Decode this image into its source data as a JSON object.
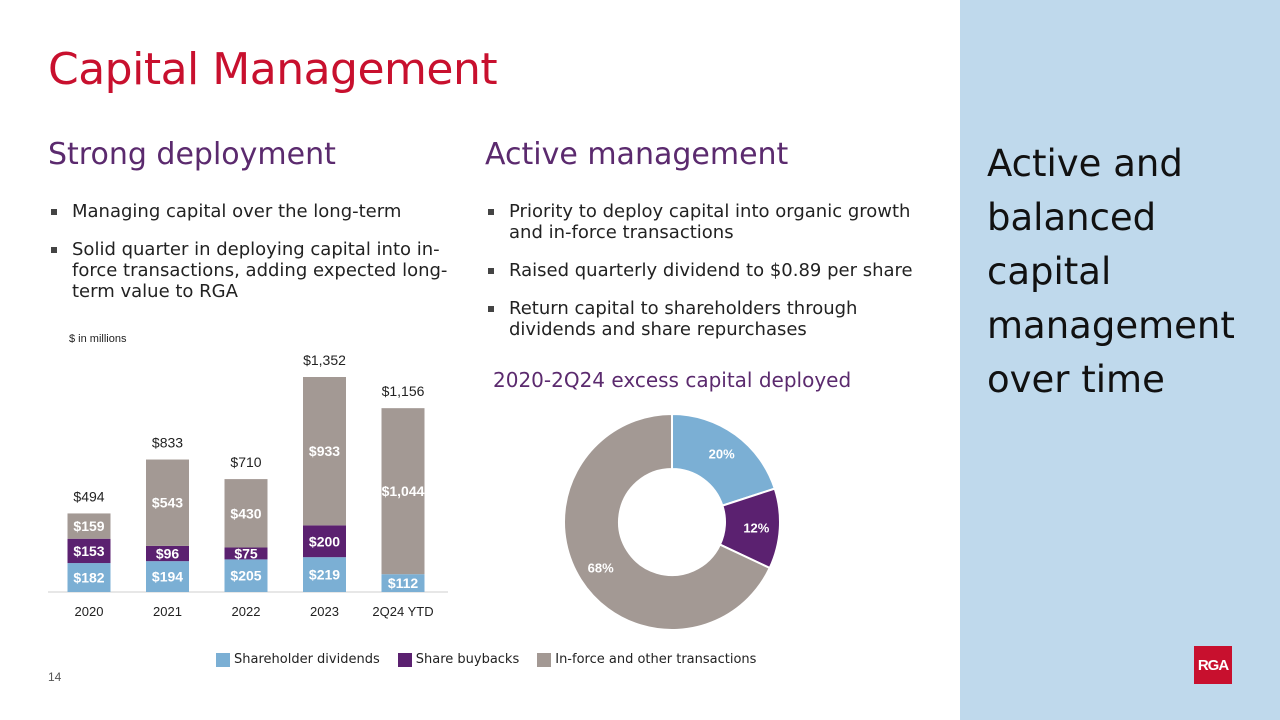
{
  "title": "Capital Management",
  "left": {
    "heading": "Strong deployment",
    "bullets": [
      "Managing capital over the long-term",
      "Solid quarter in deploying capital into in-force transactions, adding expected long-term value to RGA"
    ]
  },
  "right": {
    "heading": "Active management",
    "bullets": [
      "Priority to deploy capital into organic growth and in-force transactions",
      "Raised quarterly dividend to $0.89 per share",
      "Return capital to shareholders through dividends and share repurchases"
    ]
  },
  "sidebar": {
    "text": "Active and balanced capital management over time",
    "logo": "RGA"
  },
  "page_number": "14",
  "units_label": "$ in millions",
  "colors": {
    "dividends": "#7bafd4",
    "buybacks": "#5b2170",
    "inforce": "#a39994",
    "title": "#c8102e",
    "heading": "#5b2a6e",
    "sidebar": "#bfd9ec"
  },
  "legend": [
    "Shareholder dividends",
    "Share buybacks",
    "In-force and other transactions"
  ],
  "chart_data": [
    {
      "type": "bar",
      "stacked": true,
      "ylabel": "$ in millions",
      "categories": [
        "2020",
        "2021",
        "2022",
        "2023",
        "2Q24 YTD"
      ],
      "series": [
        {
          "name": "Shareholder dividends",
          "values": [
            182,
            194,
            205,
            219,
            112
          ],
          "labels": [
            "$182",
            "$194",
            "$205",
            "$219",
            "$112"
          ]
        },
        {
          "name": "Share buybacks",
          "values": [
            153,
            96,
            75,
            200,
            0
          ],
          "labels": [
            "$153",
            "$96",
            "$75",
            "$200",
            ""
          ]
        },
        {
          "name": "In-force and other transactions",
          "values": [
            159,
            543,
            430,
            933,
            1044
          ],
          "labels": [
            "$159",
            "$543",
            "$430",
            "$933",
            "$1,044"
          ]
        }
      ],
      "totals": [
        "$494",
        "$833",
        "$710",
        "$1,352",
        "$1,156"
      ],
      "ylim": [
        0,
        1352
      ]
    },
    {
      "type": "pie",
      "donut": true,
      "title": "2020-2Q24 excess capital deployed",
      "categories": [
        "Shareholder dividends",
        "Share buybacks",
        "In-force and other transactions"
      ],
      "values": [
        20,
        12,
        68
      ],
      "labels": [
        "20%",
        "12%",
        "68%"
      ]
    }
  ]
}
